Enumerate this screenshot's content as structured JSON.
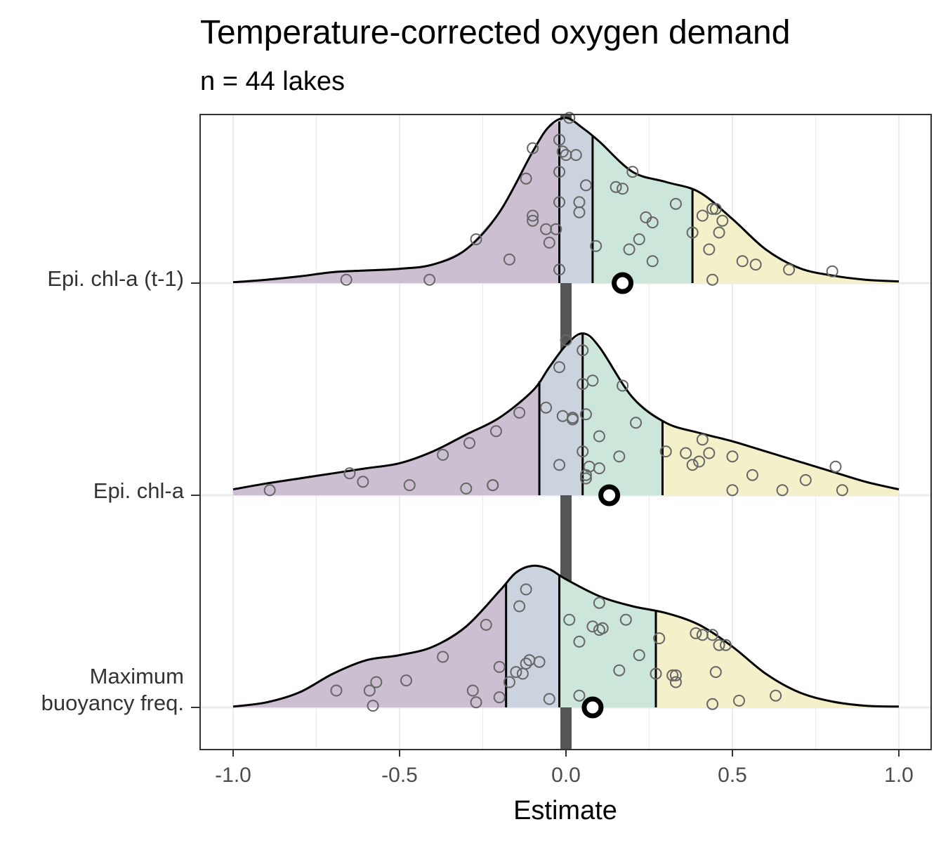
{
  "chart_data": {
    "type": "ridgeline",
    "title": "Temperature-corrected oxygen demand",
    "subtitle": "n = 44 lakes",
    "xlabel": "Estimate",
    "xlim": [
      -1.0,
      1.0
    ],
    "x_ticks": [
      "-1.0",
      "-0.5",
      "0.0",
      "0.5",
      "1.0"
    ],
    "reference_line_x": 0.0,
    "quartile_colors": [
      "#cdbfd2",
      "#cbd3df",
      "#cde6da",
      "#f3f0ca"
    ],
    "rows": [
      {
        "label_lines": [
          "Epi. chl-a (t-1)"
        ],
        "quartiles": [
          -0.02,
          0.08,
          0.38
        ],
        "mean": 0.17,
        "density": [
          [
            -1.0,
            0.005
          ],
          [
            -0.9,
            0.02
          ],
          [
            -0.8,
            0.04
          ],
          [
            -0.7,
            0.065
          ],
          [
            -0.6,
            0.075
          ],
          [
            -0.5,
            0.085
          ],
          [
            -0.4,
            0.11
          ],
          [
            -0.3,
            0.2
          ],
          [
            -0.2,
            0.42
          ],
          [
            -0.1,
            0.78
          ],
          [
            -0.05,
            0.93
          ],
          [
            0.0,
            0.98
          ],
          [
            0.05,
            0.92
          ],
          [
            0.1,
            0.84
          ],
          [
            0.2,
            0.66
          ],
          [
            0.3,
            0.6
          ],
          [
            0.4,
            0.54
          ],
          [
            0.5,
            0.38
          ],
          [
            0.6,
            0.2
          ],
          [
            0.7,
            0.09
          ],
          [
            0.8,
            0.045
          ],
          [
            0.9,
            0.02
          ],
          [
            1.0,
            0.01
          ]
        ],
        "points": [
          [
            -0.66,
            0.02
          ],
          [
            -0.41,
            0.02
          ],
          [
            -0.27,
            0.26
          ],
          [
            -0.17,
            0.14
          ],
          [
            -0.1,
            0.8
          ],
          [
            -0.12,
            0.62
          ],
          [
            -0.1,
            0.37
          ],
          [
            -0.1,
            0.4
          ],
          [
            -0.06,
            0.32
          ],
          [
            -0.05,
            0.24
          ],
          [
            -0.03,
            0.32
          ],
          [
            -0.02,
            0.08
          ],
          [
            -0.02,
            0.48
          ],
          [
            -0.02,
            0.66
          ],
          [
            -0.01,
            0.78
          ],
          [
            0.0,
            0.76
          ],
          [
            -0.02,
            0.85
          ],
          [
            0.01,
            0.98
          ],
          [
            0.03,
            0.76
          ],
          [
            0.04,
            0.48
          ],
          [
            0.04,
            0.42
          ],
          [
            0.06,
            0.58
          ],
          [
            0.09,
            0.22
          ],
          [
            0.15,
            0.57
          ],
          [
            0.17,
            0.56
          ],
          [
            0.19,
            0.2
          ],
          [
            0.2,
            0.66
          ],
          [
            0.22,
            0.26
          ],
          [
            0.24,
            0.39
          ],
          [
            0.26,
            0.36
          ],
          [
            0.26,
            0.13
          ],
          [
            0.33,
            0.47
          ],
          [
            0.38,
            0.3
          ],
          [
            0.41,
            0.4
          ],
          [
            0.43,
            0.2
          ],
          [
            0.44,
            0.44
          ],
          [
            0.45,
            0.44
          ],
          [
            0.46,
            0.3
          ],
          [
            0.47,
            0.37
          ],
          [
            0.44,
            0.02
          ],
          [
            0.53,
            0.13
          ],
          [
            0.57,
            0.11
          ],
          [
            0.67,
            0.08
          ],
          [
            0.8,
            0.07
          ]
        ]
      },
      {
        "label_lines": [
          "Epi. chl-a"
        ],
        "quartiles": [
          -0.08,
          0.05,
          0.29
        ],
        "mean": 0.13,
        "density": [
          [
            -1.0,
            0.035
          ],
          [
            -0.9,
            0.07
          ],
          [
            -0.8,
            0.1
          ],
          [
            -0.7,
            0.13
          ],
          [
            -0.6,
            0.16
          ],
          [
            -0.5,
            0.19
          ],
          [
            -0.4,
            0.26
          ],
          [
            -0.3,
            0.36
          ],
          [
            -0.2,
            0.46
          ],
          [
            -0.1,
            0.62
          ],
          [
            -0.05,
            0.76
          ],
          [
            0.0,
            0.89
          ],
          [
            0.05,
            0.96
          ],
          [
            0.1,
            0.88
          ],
          [
            0.2,
            0.58
          ],
          [
            0.3,
            0.43
          ],
          [
            0.4,
            0.37
          ],
          [
            0.5,
            0.32
          ],
          [
            0.6,
            0.26
          ],
          [
            0.7,
            0.2
          ],
          [
            0.8,
            0.14
          ],
          [
            0.9,
            0.08
          ],
          [
            1.0,
            0.035
          ]
        ],
        "points": [
          [
            -0.89,
            0.03
          ],
          [
            -0.65,
            0.13
          ],
          [
            -0.61,
            0.08
          ],
          [
            -0.47,
            0.06
          ],
          [
            -0.37,
            0.24
          ],
          [
            -0.29,
            0.31
          ],
          [
            -0.21,
            0.38
          ],
          [
            -0.22,
            0.06
          ],
          [
            -0.22,
            0.06
          ],
          [
            -0.3,
            0.04
          ],
          [
            -0.14,
            0.49
          ],
          [
            -0.06,
            0.52
          ],
          [
            -0.02,
            0.76
          ],
          [
            -0.02,
            0.18
          ],
          [
            0.0,
            0.92
          ],
          [
            -0.01,
            0.47
          ],
          [
            0.02,
            0.46
          ],
          [
            0.02,
            0.45
          ],
          [
            0.05,
            0.86
          ],
          [
            0.05,
            0.66
          ],
          [
            0.06,
            0.48
          ],
          [
            0.05,
            0.26
          ],
          [
            0.06,
            0.1
          ],
          [
            0.07,
            0.17
          ],
          [
            0.08,
            0.68
          ],
          [
            0.1,
            0.16
          ],
          [
            0.1,
            0.35
          ],
          [
            0.16,
            0.23
          ],
          [
            0.17,
            0.65
          ],
          [
            0.21,
            0.43
          ],
          [
            0.3,
            0.26
          ],
          [
            0.36,
            0.25
          ],
          [
            0.38,
            0.18
          ],
          [
            0.4,
            0.2
          ],
          [
            0.41,
            0.33
          ],
          [
            0.43,
            0.25
          ],
          [
            0.5,
            0.23
          ],
          [
            0.5,
            0.03
          ],
          [
            0.56,
            0.12
          ],
          [
            0.65,
            0.03
          ],
          [
            0.72,
            0.09
          ],
          [
            0.81,
            0.17
          ],
          [
            0.83,
            0.03
          ],
          [
            0.06,
            0.12
          ]
        ]
      },
      {
        "label_lines": [
          "Maximum",
          "buoyancy freq."
        ],
        "quartiles": [
          -0.18,
          -0.02,
          0.27
        ],
        "mean": 0.08,
        "density": [
          [
            -1.0,
            0.005
          ],
          [
            -0.9,
            0.03
          ],
          [
            -0.8,
            0.09
          ],
          [
            -0.7,
            0.2
          ],
          [
            -0.6,
            0.28
          ],
          [
            -0.5,
            0.31
          ],
          [
            -0.4,
            0.36
          ],
          [
            -0.3,
            0.48
          ],
          [
            -0.2,
            0.69
          ],
          [
            -0.15,
            0.8
          ],
          [
            -0.1,
            0.84
          ],
          [
            -0.05,
            0.82
          ],
          [
            0.0,
            0.76
          ],
          [
            0.1,
            0.66
          ],
          [
            0.2,
            0.6
          ],
          [
            0.3,
            0.56
          ],
          [
            0.4,
            0.49
          ],
          [
            0.5,
            0.36
          ],
          [
            0.6,
            0.2
          ],
          [
            0.7,
            0.09
          ],
          [
            0.8,
            0.035
          ],
          [
            0.9,
            0.01
          ],
          [
            1.0,
            0.005
          ]
        ],
        "points": [
          [
            -0.69,
            0.1
          ],
          [
            -0.59,
            0.1
          ],
          [
            -0.57,
            0.15
          ],
          [
            -0.58,
            0.01
          ],
          [
            -0.48,
            0.16
          ],
          [
            -0.37,
            0.3
          ],
          [
            -0.28,
            0.1
          ],
          [
            -0.27,
            0.03
          ],
          [
            -0.24,
            0.49
          ],
          [
            -0.2,
            0.24
          ],
          [
            -0.2,
            0.06
          ],
          [
            -0.17,
            0.15
          ],
          [
            -0.15,
            0.21
          ],
          [
            -0.14,
            0.6
          ],
          [
            -0.13,
            0.2
          ],
          [
            -0.12,
            0.26
          ],
          [
            -0.11,
            0.28
          ],
          [
            -0.12,
            0.7
          ],
          [
            -0.08,
            0.27
          ],
          [
            -0.05,
            0.05
          ],
          [
            0.01,
            0.52
          ],
          [
            0.04,
            0.39
          ],
          [
            0.04,
            0.07
          ],
          [
            0.08,
            0.48
          ],
          [
            0.1,
            0.46
          ],
          [
            0.11,
            0.47
          ],
          [
            0.1,
            0.62
          ],
          [
            0.16,
            0.22
          ],
          [
            0.18,
            0.52
          ],
          [
            0.22,
            0.31
          ],
          [
            0.27,
            0.2
          ],
          [
            0.28,
            0.41
          ],
          [
            0.32,
            0.19
          ],
          [
            0.33,
            0.15
          ],
          [
            0.33,
            0.19
          ],
          [
            0.39,
            0.44
          ],
          [
            0.41,
            0.43
          ],
          [
            0.44,
            0.02
          ],
          [
            0.45,
            0.21
          ],
          [
            0.46,
            0.37
          ],
          [
            0.52,
            0.04
          ],
          [
            0.63,
            0.07
          ],
          [
            0.44,
            0.43
          ],
          [
            0.48,
            0.37
          ]
        ]
      }
    ]
  }
}
